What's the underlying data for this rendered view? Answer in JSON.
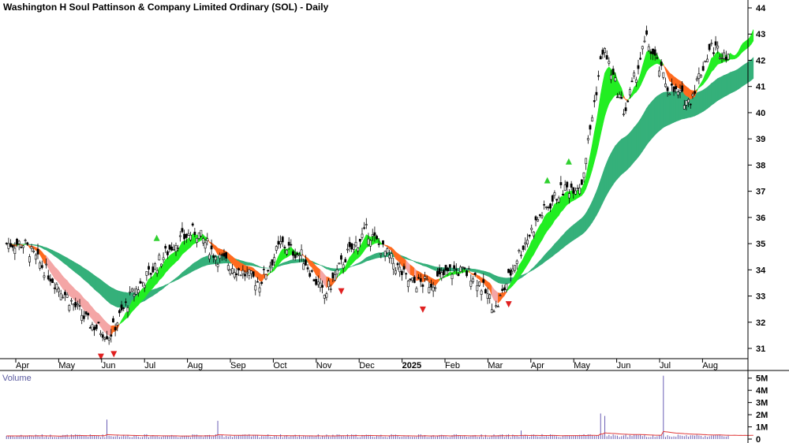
{
  "chart_data": {
    "type": "candlestick",
    "title": "Washington H Soul Pattinson & Company Limited Ordinary (SOL) - Daily",
    "price_axis": {
      "ticks": [
        "44",
        "43",
        "42",
        "41",
        "40",
        "39",
        "38",
        "37",
        "36",
        "35",
        "34",
        "33",
        "32",
        "31"
      ],
      "min": 30.5,
      "max": 44.4
    },
    "time_axis": {
      "labels": [
        "Apr",
        "May",
        "Jun",
        "Jul",
        "Aug",
        "Sep",
        "Oct",
        "Nov",
        "Dec",
        "2025",
        "Feb",
        "Mar",
        "Apr",
        "May",
        "Jun",
        "Jul",
        "Aug"
      ],
      "label_bold": [
        "2025"
      ]
    },
    "price_path": {
      "months": [
        0,
        0.5,
        1,
        1.5,
        2,
        2.5,
        3,
        3.5,
        4,
        4.5,
        5,
        5.5,
        6,
        6.5,
        7,
        7.5,
        8,
        8.5,
        9,
        9.5,
        10,
        10.5,
        11,
        11.5,
        12,
        12.5,
        13,
        13.5,
        14,
        14.5,
        15,
        15.5,
        16,
        16.5,
        17
      ],
      "close": [
        35,
        34,
        33,
        32,
        31.5,
        33,
        34,
        35,
        35.5,
        34.5,
        34,
        33.5,
        35,
        34.5,
        33,
        34.5,
        35.5,
        34.5,
        33.5,
        33.5,
        34,
        33.8,
        32.5,
        34.5,
        36,
        37,
        37.3,
        42.5,
        40,
        42.8,
        41,
        40.4,
        42.5,
        42.2,
        43.5
      ],
      "signals": [
        {
          "month": 3.1,
          "type": "buy"
        },
        {
          "month": 12.2,
          "type": "buy"
        },
        {
          "month": 12.7,
          "type": "buy"
        },
        {
          "month": 1.8,
          "type": "sell"
        },
        {
          "month": 2.1,
          "type": "sell"
        },
        {
          "month": 7.4,
          "type": "sell"
        },
        {
          "month": 9.3,
          "type": "sell"
        },
        {
          "month": 11.3,
          "type": "sell"
        }
      ]
    },
    "moving_average_ribbons": {
      "short_term": {
        "rising_color": "#22ee22",
        "falling_color": "#ff6a1e",
        "weak_falling_color": "#f4a6a6"
      },
      "long_term": {
        "color": "#35b07a"
      }
    },
    "volume_panel": {
      "label": "Volume",
      "ticks": [
        "5M",
        "4M",
        "3M",
        "2M",
        "1M",
        "0"
      ],
      "max_millions": 5.5,
      "average_line_color": "#e03a3a",
      "bar_color": "#6b5fb5"
    }
  }
}
